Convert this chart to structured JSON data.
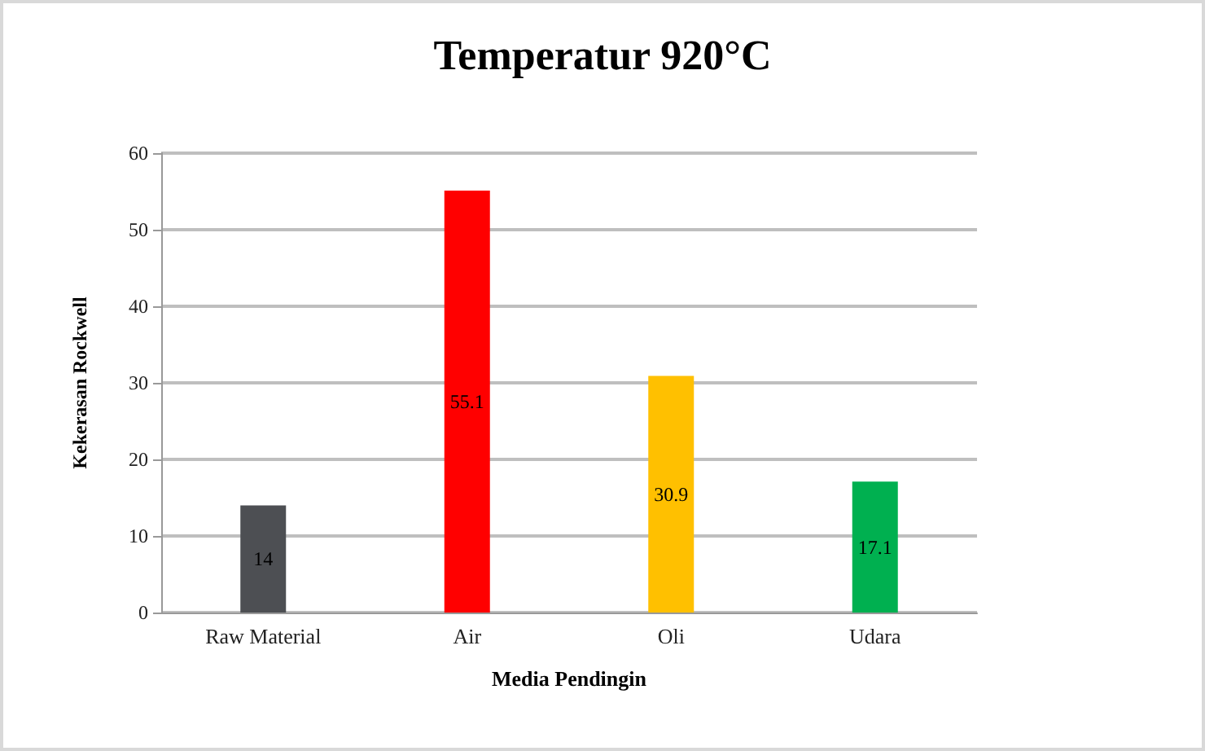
{
  "chart_data": {
    "type": "bar",
    "title": "Temperatur 920°C",
    "xlabel": "Media Pendingin",
    "ylabel": "Kekerasan Rockwell",
    "categories": [
      "Raw Material",
      "Air",
      "Oli",
      "Udara"
    ],
    "values": [
      14,
      55.1,
      30.9,
      17.1
    ],
    "colors": [
      "#4d4f53",
      "#ff0000",
      "#ffc000",
      "#00b050"
    ],
    "ylim": [
      0,
      60
    ],
    "yticks": [
      0,
      10,
      20,
      30,
      40,
      50,
      60
    ],
    "grid": "y",
    "data_labels": true
  }
}
